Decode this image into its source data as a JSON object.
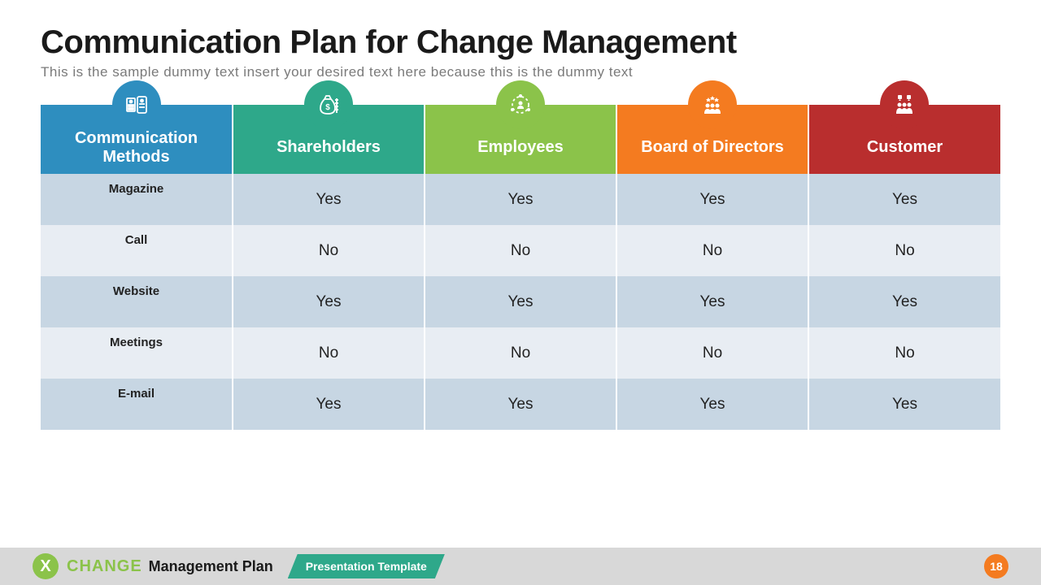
{
  "title": "Communication Plan for Change Management",
  "subtitle": "This is the sample dummy text insert your desired text here because this is the dummy text",
  "table": {
    "columns": [
      {
        "label": "Communication Methods",
        "color": "#2e8ebf",
        "icon": "finance-icon"
      },
      {
        "label": "Shareholders",
        "color": "#2ea88a",
        "icon": "moneybag-icon"
      },
      {
        "label": "Employees",
        "color": "#8bc34a",
        "icon": "people-circle-icon"
      },
      {
        "label": "Board of Directors",
        "color": "#f47b20",
        "icon": "board-icon"
      },
      {
        "label": "Customer",
        "color": "#b92e2e",
        "icon": "customer-icon"
      }
    ],
    "row_odd_color": "#c7d6e3",
    "row_even_color": "#e8edf3",
    "rows": [
      {
        "label": "Magazine",
        "values": [
          "Yes",
          "Yes",
          "Yes",
          "Yes"
        ]
      },
      {
        "label": "Call",
        "values": [
          "No",
          "No",
          "No",
          "No"
        ]
      },
      {
        "label": "Website",
        "values": [
          "Yes",
          "Yes",
          "Yes",
          "Yes"
        ]
      },
      {
        "label": "Meetings",
        "values": [
          "No",
          "No",
          "No",
          "No"
        ]
      },
      {
        "label": "E-mail",
        "values": [
          "Yes",
          "Yes",
          "Yes",
          "Yes"
        ]
      }
    ]
  },
  "footer": {
    "logo_glyph": "X",
    "change": "CHANGE",
    "mgmt": "Management Plan",
    "badge": "Presentation Template",
    "page": "18",
    "badge_color": "#2ea88a",
    "page_color": "#f47b20",
    "logo_color": "#8bc34a"
  }
}
